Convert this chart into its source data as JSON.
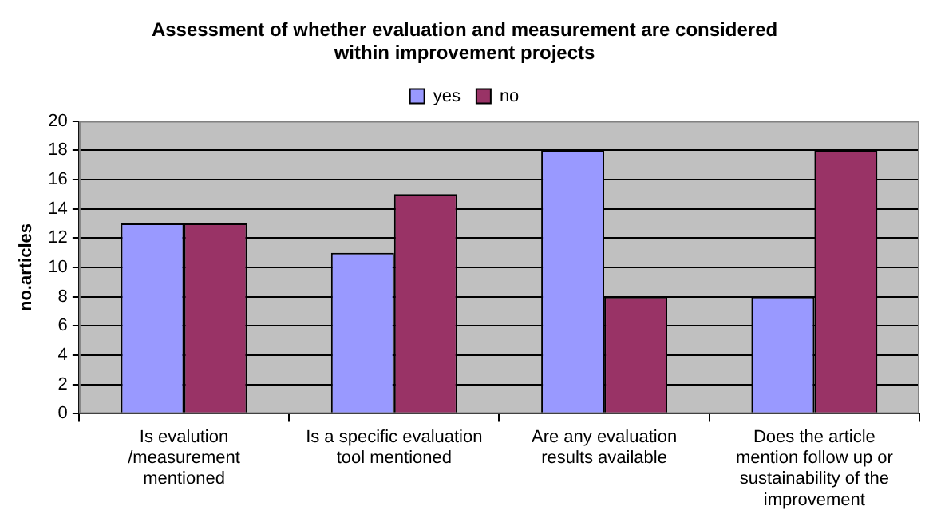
{
  "chart_data": {
    "type": "bar",
    "title": "Assessment of whether evaluation and measurement are considered within improvement projects",
    "ylabel": "no.articles",
    "categories": [
      "Is evalution /measurement mentioned",
      "Is a specific evaluation tool mentioned",
      "Are any evaluation results available",
      "Does the article mention follow up or sustainability of the improvement"
    ],
    "series": [
      {
        "name": "yes",
        "color": "#9999ff",
        "values": [
          13,
          11,
          18,
          8
        ]
      },
      {
        "name": "no",
        "color": "#993366",
        "values": [
          13,
          15,
          8,
          18
        ]
      }
    ],
    "ylim": [
      0,
      20
    ],
    "yticks": [
      0,
      2,
      4,
      6,
      8,
      10,
      12,
      14,
      16,
      18,
      20
    ],
    "grid": "y",
    "legend": "top"
  }
}
